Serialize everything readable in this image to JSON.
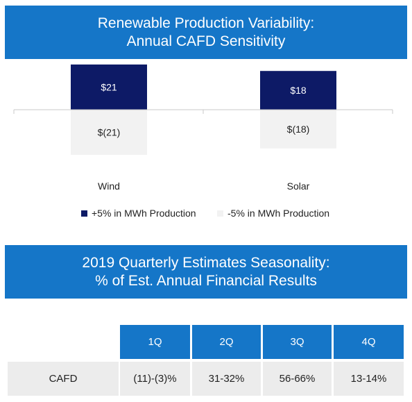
{
  "top_banner": {
    "line1": "Renewable Production Variability:",
    "line2": "Annual CAFD Sensitivity"
  },
  "chart_data": {
    "type": "bar",
    "categories": [
      "Wind",
      "Solar"
    ],
    "series": [
      {
        "name": "+5% in MWh Production",
        "values": [
          21,
          18
        ],
        "labels": [
          "$21",
          "$18"
        ],
        "color": "#0d1a66"
      },
      {
        "name": "-5% in MWh Production",
        "values": [
          -21,
          -18
        ],
        "labels": [
          "$(21)",
          "$(18)"
        ],
        "color": "#f2f2f2"
      }
    ],
    "title": "Renewable Production Variability: Annual CAFD Sensitivity",
    "xlabel": "",
    "ylabel": "",
    "ylim": [
      -22,
      22
    ],
    "grid": false,
    "legend": "bottom"
  },
  "bottom_banner": {
    "line1": "2019 Quarterly Estimates Seasonality:",
    "line2": "% of Est. Annual Financial Results"
  },
  "table": {
    "columns": [
      "1Q",
      "2Q",
      "3Q",
      "4Q"
    ],
    "rows": [
      {
        "label": "CAFD",
        "values": [
          "(11)-(3)%",
          "31-32%",
          "56-66%",
          "13-14%"
        ]
      }
    ]
  },
  "colors": {
    "banner_blue": "#1576c8",
    "positive_bar": "#0d1a66",
    "negative_bar": "#f2f2f2",
    "row_gray": "#ececec"
  }
}
